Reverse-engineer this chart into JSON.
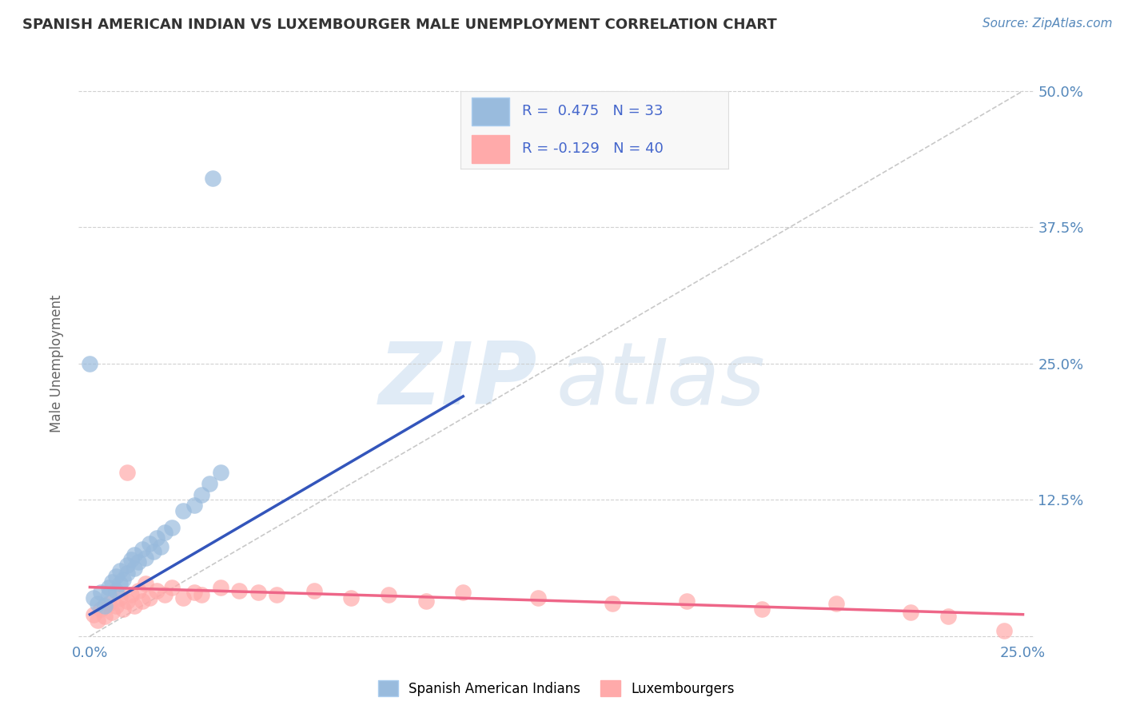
{
  "title": "SPANISH AMERICAN INDIAN VS LUXEMBOURGER MALE UNEMPLOYMENT CORRELATION CHART",
  "source": "Source: ZipAtlas.com",
  "ylabel": "Male Unemployment",
  "xlim": [
    -0.003,
    0.253
  ],
  "ylim": [
    -0.005,
    0.505
  ],
  "xtick_vals": [
    0.0,
    0.25
  ],
  "xtick_labels": [
    "0.0%",
    "25.0%"
  ],
  "ytick_vals": [
    0.0,
    0.125,
    0.25,
    0.375,
    0.5
  ],
  "ytick_labels": [
    "",
    "12.5%",
    "25.0%",
    "37.5%",
    "50.0%"
  ],
  "blue_color": "#99BBDD",
  "pink_color": "#FFAAAA",
  "blue_line_color": "#3355BB",
  "pink_line_color": "#EE6688",
  "grid_color": "#CCCCCC",
  "background_color": "#FFFFFF",
  "blue_scatter_x": [
    0.001,
    0.002,
    0.003,
    0.004,
    0.005,
    0.005,
    0.006,
    0.007,
    0.007,
    0.008,
    0.008,
    0.009,
    0.01,
    0.01,
    0.011,
    0.012,
    0.012,
    0.013,
    0.014,
    0.015,
    0.016,
    0.017,
    0.018,
    0.019,
    0.02,
    0.022,
    0.025,
    0.028,
    0.03,
    0.032,
    0.035,
    0.0,
    0.033
  ],
  "blue_scatter_y": [
    0.035,
    0.03,
    0.04,
    0.028,
    0.045,
    0.038,
    0.05,
    0.042,
    0.055,
    0.048,
    0.06,
    0.052,
    0.065,
    0.058,
    0.07,
    0.062,
    0.075,
    0.068,
    0.08,
    0.072,
    0.085,
    0.078,
    0.09,
    0.082,
    0.095,
    0.1,
    0.115,
    0.12,
    0.13,
    0.14,
    0.15,
    0.25,
    0.42
  ],
  "pink_scatter_x": [
    0.001,
    0.002,
    0.003,
    0.004,
    0.005,
    0.006,
    0.007,
    0.008,
    0.009,
    0.01,
    0.011,
    0.012,
    0.013,
    0.014,
    0.015,
    0.016,
    0.018,
    0.02,
    0.022,
    0.025,
    0.028,
    0.03,
    0.035,
    0.04,
    0.045,
    0.05,
    0.06,
    0.07,
    0.08,
    0.09,
    0.1,
    0.12,
    0.14,
    0.16,
    0.18,
    0.2,
    0.22,
    0.01,
    0.23,
    0.245
  ],
  "pink_scatter_y": [
    0.02,
    0.015,
    0.025,
    0.018,
    0.03,
    0.022,
    0.028,
    0.035,
    0.025,
    0.032,
    0.038,
    0.028,
    0.042,
    0.032,
    0.048,
    0.035,
    0.042,
    0.038,
    0.045,
    0.035,
    0.04,
    0.038,
    0.045,
    0.042,
    0.04,
    0.038,
    0.042,
    0.035,
    0.038,
    0.032,
    0.04,
    0.035,
    0.03,
    0.032,
    0.025,
    0.03,
    0.022,
    0.15,
    0.018,
    0.005
  ],
  "blue_line_x": [
    0.0,
    0.1
  ],
  "blue_line_y": [
    0.02,
    0.22
  ],
  "pink_line_x": [
    0.0,
    0.25
  ],
  "pink_line_y": [
    0.045,
    0.02
  ],
  "diag_line_x": [
    0.0,
    0.25
  ],
  "diag_line_y": [
    0.0,
    0.5
  ]
}
